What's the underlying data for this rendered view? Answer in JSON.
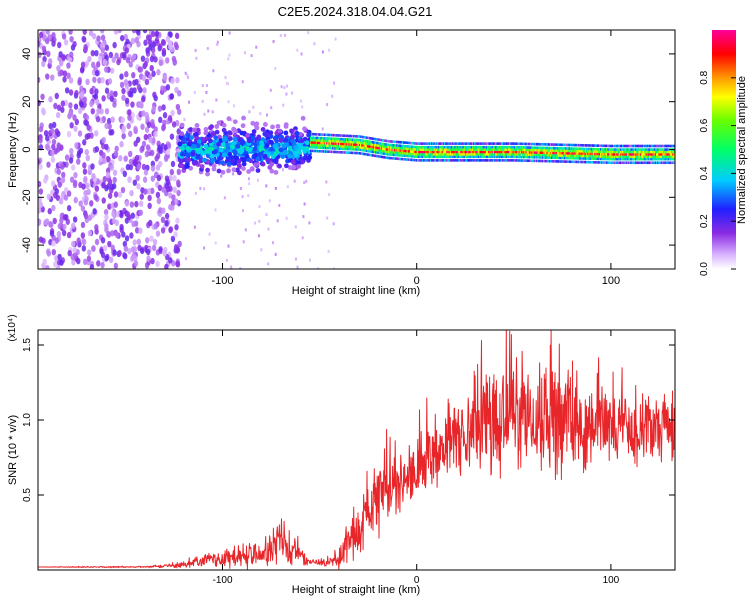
{
  "title": "C2E5.2024.318.04.04.G21",
  "colors": {
    "snr_line": "#e8262a",
    "background": "#ffffff",
    "axis": "#000000"
  },
  "chart_data": [
    {
      "type": "heatmap",
      "title": "C2E5.2024.318.04.04.G21",
      "xlabel": "Height of straight line (km)",
      "ylabel": "Frequency (Hz)",
      "xlim": [
        -195,
        133
      ],
      "ylim": [
        -50,
        50
      ],
      "xticks": [
        -100,
        0,
        100
      ],
      "yticks": [
        -40,
        -20,
        0,
        20,
        40
      ],
      "colorbar": {
        "label": "Normalized spectral amplitude",
        "range": [
          0.0,
          1.0
        ],
        "ticks": [
          0.0,
          0.2,
          0.4,
          0.6,
          0.8
        ],
        "colormap": [
          "#ffffff",
          "#cc99ff",
          "#6600ff",
          "#0000ff",
          "#00ccff",
          "#00ff66",
          "#66ff00",
          "#ffff00",
          "#ff9900",
          "#ff0000",
          "#ff00ff"
        ]
      },
      "regions": [
        {
          "x_range": [
            -195,
            -122
          ],
          "freq_range": [
            -50,
            50
          ],
          "amplitude": 0.1,
          "pattern": "broadband noise"
        },
        {
          "x_range": [
            -122,
            -55
          ],
          "freq_range": [
            -10,
            10
          ],
          "amplitude": 0.3,
          "pattern": "dispersed signal"
        },
        {
          "x_range": [
            -55,
            133
          ],
          "freq_range": [
            -4,
            4
          ],
          "amplitude": 0.85,
          "pattern": "narrow carrier line"
        }
      ],
      "carrier_centre_hz": [
        {
          "x": -55,
          "freq": 3
        },
        {
          "x": -30,
          "freq": 2
        },
        {
          "x": -15,
          "freq": 0
        },
        {
          "x": 0,
          "freq": -1
        },
        {
          "x": 50,
          "freq": -1
        },
        {
          "x": 100,
          "freq": -2
        },
        {
          "x": 133,
          "freq": -2
        }
      ],
      "grid": false
    },
    {
      "type": "line",
      "xlabel": "Height of straight line (km)",
      "ylabel": "SNR (10 * v/v)",
      "y_multiplier": "(x10⁴)",
      "xlim": [
        -195,
        133
      ],
      "ylim": [
        0,
        1.6
      ],
      "xticks": [
        -100,
        0,
        100
      ],
      "yticks": [
        0.5,
        1.0,
        1.5
      ],
      "series": [
        {
          "x": [
            -195,
            -170,
            -140,
            -122,
            -110,
            -90,
            -80,
            -70,
            -62,
            -55,
            -45,
            -38,
            -30,
            -20,
            -15,
            -10,
            0,
            10,
            20,
            30,
            40,
            50,
            60,
            70,
            80,
            90,
            100,
            110,
            120,
            133
          ],
          "y": [
            0.02,
            0.02,
            0.02,
            0.03,
            0.06,
            0.08,
            0.12,
            0.16,
            0.12,
            0.05,
            0.05,
            0.12,
            0.25,
            0.45,
            0.55,
            0.58,
            0.7,
            0.78,
            0.9,
            0.98,
            1.0,
            1.02,
            0.98,
            1.02,
            1.0,
            0.98,
            0.95,
            0.95,
            0.95,
            0.95
          ],
          "spread": [
            0.0,
            0.005,
            0.005,
            0.02,
            0.05,
            0.08,
            0.12,
            0.18,
            0.1,
            0.02,
            0.04,
            0.12,
            0.2,
            0.35,
            0.3,
            0.25,
            0.28,
            0.3,
            0.35,
            0.4,
            0.5,
            0.45,
            0.4,
            0.5,
            0.4,
            0.35,
            0.3,
            0.3,
            0.3,
            0.3
          ]
        }
      ],
      "grid": false
    }
  ]
}
